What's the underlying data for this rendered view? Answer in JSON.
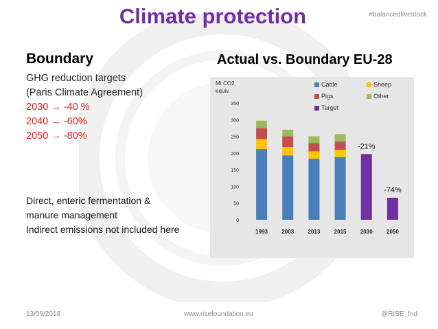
{
  "header": {
    "title": "Climate protection",
    "hashtag": "#balancedlivestock"
  },
  "left": {
    "boundary_title": "Boundary",
    "ghg_lines": [
      "GHG reduction targets",
      "(Paris Climate Agreement)"
    ],
    "targets": [
      "2030 → -40 %",
      "2040 → -60%",
      "2050 → -80%"
    ],
    "notes": [
      "Direct, enteric fermentation &",
      "manure management",
      "Indirect emissions not included here"
    ]
  },
  "chart_title": "Actual vs. Boundary EU-28",
  "chart_data": {
    "type": "bar",
    "stacked": true,
    "ylabel": "Mt CO2 equiv.",
    "ylabel_lines": [
      "Mt CO2",
      "equiv."
    ],
    "ylim": [
      0,
      350
    ],
    "yticks": [
      0,
      50,
      100,
      150,
      200,
      250,
      300,
      350
    ],
    "categories": [
      "1993",
      "2003",
      "2013",
      "2015",
      "2030",
      "2050"
    ],
    "legend_position": "top-right",
    "grid": false,
    "series": [
      {
        "name": "Cattle",
        "color": "#4a7ebb",
        "values": [
          212,
          193,
          183,
          188,
          0,
          0
        ]
      },
      {
        "name": "Sheep",
        "color": "#f7c600",
        "values": [
          30,
          25,
          22,
          22,
          0,
          0
        ]
      },
      {
        "name": "Pigs",
        "color": "#c0504d",
        "values": [
          33,
          32,
          25,
          25,
          0,
          0
        ]
      },
      {
        "name": "Other",
        "color": "#9bbb59",
        "values": [
          22,
          20,
          20,
          22,
          0,
          0
        ]
      },
      {
        "name": "Target",
        "color": "#7030a0",
        "values": [
          0,
          0,
          0,
          0,
          197,
          66
        ]
      }
    ],
    "legend_order": [
      "Cattle",
      "Sheep",
      "Pigs",
      "Other",
      "Target"
    ],
    "annotations": [
      {
        "category": "2030",
        "text": "-21%"
      },
      {
        "category": "2050",
        "text": "-74%"
      }
    ]
  },
  "footer": {
    "date": "13/09/2018",
    "url": "www.risefoundation.eu",
    "handle": "@RISE_fnd"
  }
}
